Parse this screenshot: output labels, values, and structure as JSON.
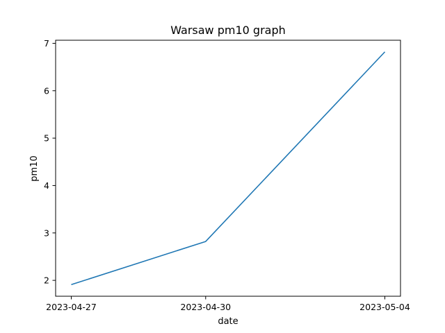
{
  "chart_data": {
    "type": "line",
    "title": "Warsaw pm10 graph",
    "xlabel": "date",
    "ylabel": "pm10",
    "x": [
      "2023-04-27",
      "2023-04-30",
      "2023-05-04"
    ],
    "series": [
      {
        "values": [
          1.91,
          2.82,
          6.82
        ],
        "color": "#1f77b4"
      }
    ],
    "y_ticks": [
      2,
      3,
      4,
      5,
      6,
      7
    ],
    "ylim": [
      1.665,
      7.065
    ],
    "grid": false,
    "legend": "none"
  }
}
